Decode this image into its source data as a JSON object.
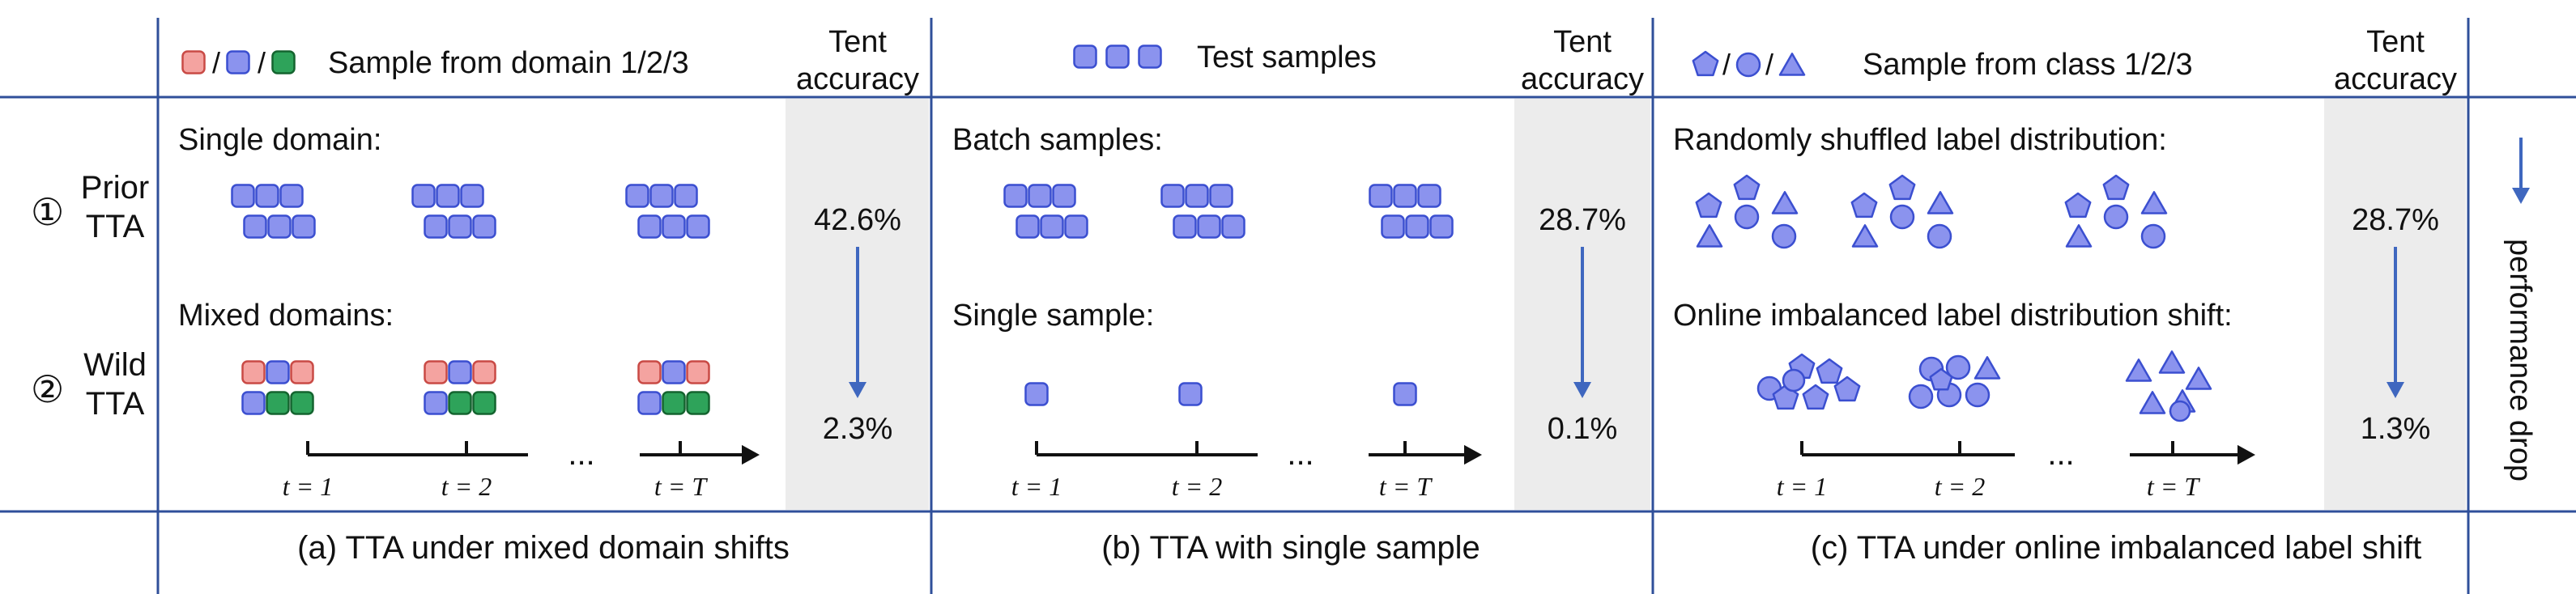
{
  "colors": {
    "frame": "#2f4f9a",
    "tent_panel": "#ececec",
    "sample_blue": "#8b93ee",
    "sample_blue_stroke": "#3b4fd0",
    "domain_red": "#f4a3a0",
    "domain_red_stroke": "#c94a45",
    "domain_green": "#2ea35a",
    "domain_green_stroke": "#14642f",
    "arrow_blue": "#3f67bf"
  },
  "rows": {
    "prior": {
      "marker": "①",
      "line1": "Prior",
      "line2": "TTA"
    },
    "wild": {
      "marker": "②",
      "line1": "Wild",
      "line2": "TTA"
    }
  },
  "side_label": "performance drop",
  "panels": [
    {
      "legend_text": "/ / Sample from domain 1/2/3",
      "legend_icons": [
        "red-square-icon",
        "blue-square-icon",
        "green-square-icon"
      ],
      "tent_header": [
        "Tent",
        "accuracy"
      ],
      "prior_label": "Single domain:",
      "wild_label": "Mixed domains:",
      "prior_acc": "42.6%",
      "wild_acc": "2.3%",
      "timeline": [
        "t = 1",
        "t = 2",
        "...",
        "t = T"
      ],
      "caption": "(a) TTA under mixed domain shifts"
    },
    {
      "legend_text": "Test samples",
      "legend_icons": [
        "blue-square-icon",
        "blue-square-icon",
        "blue-square-icon"
      ],
      "tent_header": [
        "Tent",
        "accuracy"
      ],
      "prior_label": "Batch samples:",
      "wild_label": "Single sample:",
      "prior_acc": "28.7%",
      "wild_acc": "0.1%",
      "timeline": [
        "t = 1",
        "t = 2",
        "...",
        "t = T"
      ],
      "caption": "(b) TTA with single sample"
    },
    {
      "legend_text": "/ / Sample from class 1/2/3",
      "legend_icons": [
        "pentagon-icon",
        "circle-icon",
        "triangle-icon"
      ],
      "tent_header": [
        "Tent",
        "accuracy"
      ],
      "prior_label": "Randomly shuffled label distribution:",
      "wild_label": "Online imbalanced label distribution shift:",
      "prior_acc": "28.7%",
      "wild_acc": "1.3%",
      "timeline": [
        "t = 1",
        "t = 2",
        "...",
        "t = T"
      ],
      "caption": "(c) TTA under online imbalanced label shift"
    }
  ]
}
